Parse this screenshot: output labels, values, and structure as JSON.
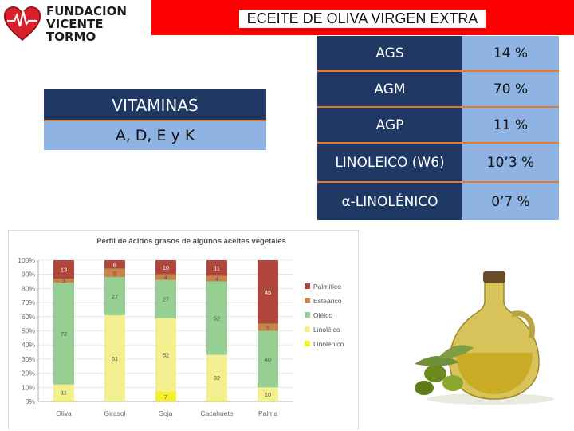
{
  "logo": {
    "line1": "FUNDACION",
    "line2": "VICENTE TORMO"
  },
  "title": "ECEITE DE OLIVA VIRGEN EXTRA",
  "vitamins": {
    "heading": "VITAMINAS",
    "list": "A, D, E y K"
  },
  "fatty_acids": [
    {
      "label": "AGS",
      "value": "14 %"
    },
    {
      "label": "AGM",
      "value": "70 %"
    },
    {
      "label": "AGP",
      "value": "11 %"
    },
    {
      "label": "LINOLEICO (W6)",
      "value": "10’3 %"
    },
    {
      "label": "α-LINOLÉNICO",
      "value": "0’7 %"
    }
  ],
  "colors": {
    "banner": "#ff0000",
    "navy": "#1f3864",
    "light_blue": "#8fb4e3",
    "orange": "#e67a2b",
    "palmitico": "#b0453b",
    "estearico": "#c6844a",
    "oleico": "#95cf91",
    "linoleico": "#f3ef8d",
    "linolenico": "#f5f02a"
  },
  "chart_data": {
    "type": "bar",
    "stacked": true,
    "title": "Perfil de ácidos grasos de algunos aceites vegetales",
    "categories": [
      "Oliva",
      "Girasol",
      "Soja",
      "Cacahuete",
      "Palma"
    ],
    "ylim": [
      0,
      100
    ],
    "yticks": [
      "0%",
      "10%",
      "20%",
      "30%",
      "40%",
      "50%",
      "60%",
      "70%",
      "80%",
      "90%",
      "100%"
    ],
    "legend_position": "right",
    "series": [
      {
        "name": "Linolénico",
        "values": [
          1,
          0,
          7,
          1,
          0
        ],
        "labels": [
          "1",
          "0",
          "7",
          "1",
          "0"
        ]
      },
      {
        "name": "Linoléico",
        "values": [
          11,
          61,
          52,
          32,
          10
        ],
        "labels": [
          "11",
          "61",
          "52",
          "32",
          "10"
        ]
      },
      {
        "name": "Oléico",
        "values": [
          72,
          27,
          27,
          52,
          40
        ],
        "labels": [
          "72",
          "27",
          "27",
          "52",
          "40"
        ]
      },
      {
        "name": "Esteárico",
        "values": [
          3,
          6,
          4,
          4,
          5
        ],
        "labels": [
          "3",
          "6",
          "4",
          "4",
          "5"
        ]
      },
      {
        "name": "Palmítico",
        "values": [
          13,
          6,
          10,
          11,
          45
        ],
        "labels": [
          "13",
          "6",
          "10",
          "11",
          "45"
        ]
      }
    ],
    "legend_order": [
      "Palmítico",
      "Esteárico",
      "Oléico",
      "Linoléico",
      "Linolénico"
    ]
  }
}
